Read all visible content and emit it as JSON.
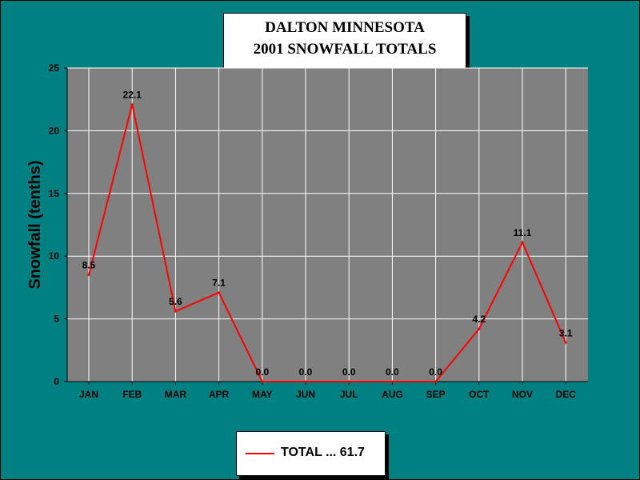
{
  "chart_data": {
    "type": "line",
    "title_lines": [
      "DALTON MINNESOTA",
      "2001 SNOWFALL TOTALS"
    ],
    "xlabel": "",
    "ylabel": "Snowfall (tenths)",
    "categories": [
      "JAN",
      "FEB",
      "MAR",
      "APR",
      "MAY",
      "JUN",
      "JUL",
      "AUG",
      "SEP",
      "OCT",
      "NOV",
      "DEC"
    ],
    "series": [
      {
        "name": "TOTAL ... 61.7",
        "values": [
          8.5,
          22.1,
          5.6,
          7.1,
          0.0,
          0.0,
          0.0,
          0.0,
          0.0,
          4.2,
          11.1,
          3.1
        ],
        "data_labels": [
          "8.5",
          "22.1",
          "5.6",
          "7.1",
          "0.0",
          "0.0",
          "0.0",
          "0.0",
          "0.0",
          "4.2",
          "11.1",
          "3.1"
        ],
        "color": "#ff0000"
      }
    ],
    "ylim": [
      0,
      25
    ],
    "yticks": [
      "0",
      "5",
      "10",
      "15",
      "20",
      "25"
    ],
    "grid": true,
    "legend_position": "bottom",
    "colors": {
      "background": "#008080",
      "plot_area": "#808080",
      "grid": "#ffffff",
      "line": "#ff0000"
    }
  }
}
